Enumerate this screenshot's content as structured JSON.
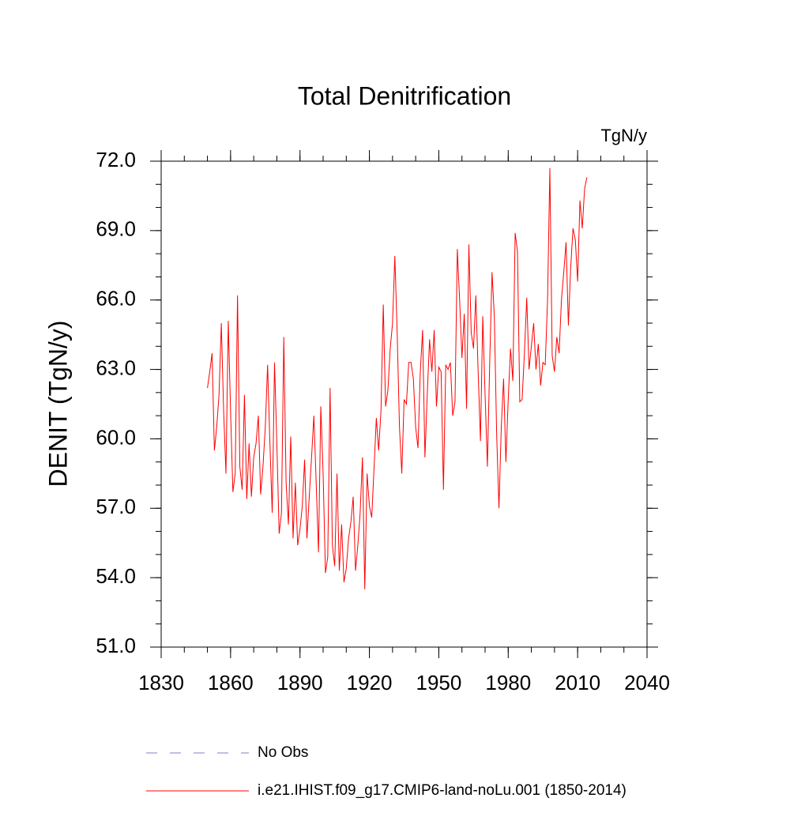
{
  "chart_data": {
    "type": "line",
    "title": "Total Denitrification",
    "units": "TgN/y",
    "ylabel": "DENIT  (TgN/y)",
    "x": [
      1850,
      1851,
      1852,
      1853,
      1854,
      1855,
      1856,
      1857,
      1858,
      1859,
      1860,
      1861,
      1862,
      1863,
      1864,
      1865,
      1866,
      1867,
      1868,
      1869,
      1870,
      1871,
      1872,
      1873,
      1874,
      1875,
      1876,
      1877,
      1878,
      1879,
      1880,
      1881,
      1882,
      1883,
      1884,
      1885,
      1886,
      1887,
      1888,
      1889,
      1890,
      1891,
      1892,
      1893,
      1894,
      1895,
      1896,
      1897,
      1898,
      1899,
      1900,
      1901,
      1902,
      1903,
      1904,
      1905,
      1906,
      1907,
      1908,
      1909,
      1910,
      1911,
      1912,
      1913,
      1914,
      1915,
      1916,
      1917,
      1918,
      1919,
      1920,
      1921,
      1922,
      1923,
      1924,
      1925,
      1926,
      1927,
      1928,
      1929,
      1930,
      1931,
      1932,
      1933,
      1934,
      1935,
      1936,
      1937,
      1938,
      1939,
      1940,
      1941,
      1942,
      1943,
      1944,
      1945,
      1946,
      1947,
      1948,
      1949,
      1950,
      1951,
      1952,
      1953,
      1954,
      1955,
      1956,
      1957,
      1958,
      1959,
      1960,
      1961,
      1962,
      1963,
      1964,
      1965,
      1966,
      1967,
      1968,
      1969,
      1970,
      1971,
      1972,
      1973,
      1974,
      1975,
      1976,
      1977,
      1978,
      1979,
      1980,
      1981,
      1982,
      1983,
      1984,
      1985,
      1986,
      1987,
      1988,
      1989,
      1990,
      1991,
      1992,
      1993,
      1994,
      1995,
      1996,
      1997,
      1998,
      1999,
      2000,
      2001,
      2002,
      2003,
      2004,
      2005,
      2006,
      2007,
      2008,
      2009,
      2010,
      2011,
      2012,
      2013,
      2014
    ],
    "series": [
      {
        "name": "i.e21.IHIST.f09_g17.CMIP6-land-noLu.001 (1850-2014)",
        "color": "#ff0000",
        "values": [
          62.2,
          62.9,
          63.7,
          59.5,
          60.5,
          61.9,
          65.0,
          61.2,
          58.5,
          65.1,
          61.2,
          57.7,
          58.5,
          66.2,
          58.8,
          57.8,
          61.9,
          57.4,
          59.8,
          57.5,
          59.2,
          59.8,
          61.0,
          57.6,
          58.8,
          60.5,
          63.2,
          59.8,
          56.8,
          63.3,
          59.8,
          55.9,
          56.8,
          64.4,
          58.1,
          56.3,
          60.1,
          55.7,
          58.1,
          55.4,
          56.1,
          57.1,
          59.1,
          55.7,
          57.5,
          59.2,
          61.0,
          58.1,
          55.1,
          61.4,
          58.5,
          54.2,
          54.9,
          62.2,
          55.4,
          54.5,
          58.5,
          54.3,
          56.3,
          53.8,
          54.4,
          55.7,
          56.4,
          57.5,
          54.3,
          55.4,
          56.8,
          59.2,
          53.5,
          58.5,
          57.1,
          56.6,
          58.7,
          60.9,
          59.5,
          61.2,
          65.8,
          61.4,
          62.1,
          63.9,
          65.0,
          67.9,
          64.6,
          60.5,
          58.5,
          61.7,
          61.5,
          63.3,
          63.3,
          62.6,
          60.5,
          59.6,
          62.9,
          64.7,
          59.2,
          61.9,
          64.3,
          62.9,
          64.7,
          61.4,
          63.1,
          62.9,
          57.8,
          63.2,
          63.0,
          63.3,
          61.0,
          61.6,
          68.2,
          66.0,
          63.5,
          65.4,
          61.3,
          68.4,
          64.6,
          63.9,
          66.2,
          62.9,
          59.9,
          65.3,
          61.9,
          58.8,
          63.3,
          67.2,
          65.3,
          60.2,
          57.0,
          60.5,
          62.6,
          59.0,
          61.7,
          63.9,
          62.5,
          68.9,
          68.1,
          61.6,
          61.7,
          63.7,
          66.1,
          63.0,
          64.0,
          65.0,
          63.0,
          64.1,
          62.3,
          63.3,
          63.2,
          66.0,
          71.7,
          63.6,
          62.9,
          64.4,
          63.7,
          66.0,
          67.2,
          68.5,
          64.9,
          67.4,
          69.1,
          68.6,
          66.8,
          70.3,
          69.1,
          70.8,
          71.3
        ]
      }
    ],
    "legend_extra": [
      {
        "name": "No Obs",
        "color": "#8080c0",
        "dashed": true
      }
    ],
    "xlim": [
      1830,
      2040
    ],
    "xticks": [
      1830,
      1860,
      1890,
      1920,
      1950,
      1980,
      2010,
      2040
    ],
    "xminor": 10,
    "ylim": [
      51,
      72
    ],
    "yticks": [
      {
        "value": 51,
        "label": "51.0"
      },
      {
        "value": 54,
        "label": "54.0"
      },
      {
        "value": 57,
        "label": "57.0"
      },
      {
        "value": 60,
        "label": "60.0"
      },
      {
        "value": 63,
        "label": "63.0"
      },
      {
        "value": 66,
        "label": "66.0"
      },
      {
        "value": 69,
        "label": "69.0"
      },
      {
        "value": 72,
        "label": "72.0"
      }
    ],
    "yminor": 1
  }
}
